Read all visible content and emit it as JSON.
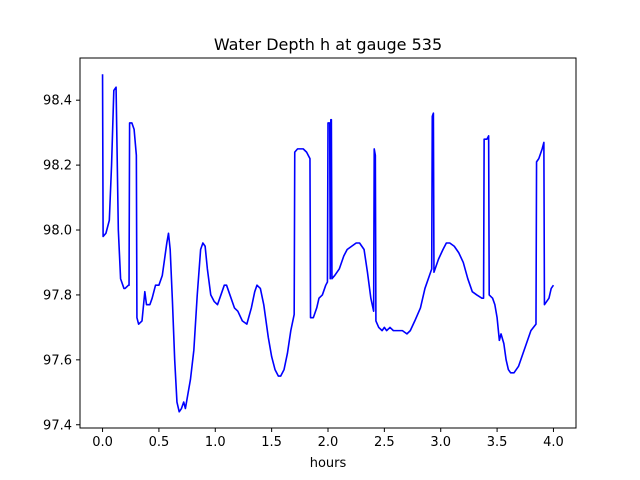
{
  "chart_data": {
    "type": "line",
    "title": "Water Depth h at gauge 535",
    "xlabel": "hours",
    "ylabel": "",
    "xlim": [
      -0.2,
      4.2
    ],
    "ylim": [
      97.39,
      98.53
    ],
    "xticks": [
      0.0,
      0.5,
      1.0,
      1.5,
      2.0,
      2.5,
      3.0,
      3.5,
      4.0
    ],
    "xtick_labels": [
      "0.0",
      "0.5",
      "1.0",
      "1.5",
      "2.0",
      "2.5",
      "3.0",
      "3.5",
      "4.0"
    ],
    "yticks": [
      97.4,
      97.6,
      97.8,
      98.0,
      98.2,
      98.4
    ],
    "ytick_labels": [
      "97.4",
      "97.6",
      "97.8",
      "98.0",
      "98.2",
      "98.4"
    ],
    "grid": false,
    "series": [
      {
        "color": "#0000ff",
        "points": [
          [
            0.0,
            98.48
          ],
          [
            0.005,
            97.98
          ],
          [
            0.03,
            97.99
          ],
          [
            0.06,
            98.03
          ],
          [
            0.08,
            98.2
          ],
          [
            0.1,
            98.43
          ],
          [
            0.12,
            98.44
          ],
          [
            0.14,
            98.0
          ],
          [
            0.16,
            97.85
          ],
          [
            0.19,
            97.82
          ],
          [
            0.2,
            97.82
          ],
          [
            0.23,
            97.83
          ],
          [
            0.235,
            97.83
          ],
          [
            0.24,
            98.33
          ],
          [
            0.26,
            98.33
          ],
          [
            0.28,
            98.31
          ],
          [
            0.3,
            98.23
          ],
          [
            0.305,
            97.73
          ],
          [
            0.32,
            97.71
          ],
          [
            0.35,
            97.72
          ],
          [
            0.375,
            97.81
          ],
          [
            0.39,
            97.77
          ],
          [
            0.42,
            97.77
          ],
          [
            0.44,
            97.79
          ],
          [
            0.47,
            97.83
          ],
          [
            0.5,
            97.83
          ],
          [
            0.53,
            97.86
          ],
          [
            0.55,
            97.91
          ],
          [
            0.57,
            97.96
          ],
          [
            0.585,
            97.99
          ],
          [
            0.6,
            97.94
          ],
          [
            0.62,
            97.78
          ],
          [
            0.64,
            97.6
          ],
          [
            0.66,
            97.47
          ],
          [
            0.68,
            97.44
          ],
          [
            0.7,
            97.45
          ],
          [
            0.72,
            97.47
          ],
          [
            0.735,
            97.45
          ],
          [
            0.75,
            97.48
          ],
          [
            0.78,
            97.54
          ],
          [
            0.81,
            97.63
          ],
          [
            0.84,
            97.8
          ],
          [
            0.87,
            97.94
          ],
          [
            0.89,
            97.96
          ],
          [
            0.91,
            97.95
          ],
          [
            0.93,
            97.88
          ],
          [
            0.96,
            97.8
          ],
          [
            0.99,
            97.78
          ],
          [
            1.02,
            97.77
          ],
          [
            1.05,
            97.8
          ],
          [
            1.08,
            97.83
          ],
          [
            1.1,
            97.83
          ],
          [
            1.13,
            97.8
          ],
          [
            1.17,
            97.76
          ],
          [
            1.2,
            97.75
          ],
          [
            1.24,
            97.72
          ],
          [
            1.28,
            97.71
          ],
          [
            1.32,
            97.76
          ],
          [
            1.35,
            97.81
          ],
          [
            1.37,
            97.83
          ],
          [
            1.4,
            97.82
          ],
          [
            1.43,
            97.77
          ],
          [
            1.47,
            97.67
          ],
          [
            1.5,
            97.61
          ],
          [
            1.53,
            97.57
          ],
          [
            1.56,
            97.55
          ],
          [
            1.58,
            97.55
          ],
          [
            1.61,
            97.57
          ],
          [
            1.64,
            97.62
          ],
          [
            1.67,
            97.69
          ],
          [
            1.7,
            97.74
          ],
          [
            1.705,
            98.24
          ],
          [
            1.73,
            98.25
          ],
          [
            1.78,
            98.25
          ],
          [
            1.81,
            98.24
          ],
          [
            1.84,
            98.22
          ],
          [
            1.845,
            97.73
          ],
          [
            1.87,
            97.73
          ],
          [
            1.9,
            97.76
          ],
          [
            1.92,
            97.79
          ],
          [
            1.95,
            97.8
          ],
          [
            1.98,
            97.83
          ],
          [
            1.995,
            97.84
          ],
          [
            2.0,
            98.33
          ],
          [
            2.015,
            98.33
          ],
          [
            2.02,
            97.85
          ],
          [
            2.025,
            98.34
          ],
          [
            2.03,
            98.34
          ],
          [
            2.035,
            97.85
          ],
          [
            2.06,
            97.86
          ],
          [
            2.1,
            97.88
          ],
          [
            2.14,
            97.92
          ],
          [
            2.17,
            97.94
          ],
          [
            2.21,
            97.95
          ],
          [
            2.25,
            97.96
          ],
          [
            2.28,
            97.96
          ],
          [
            2.32,
            97.94
          ],
          [
            2.35,
            97.87
          ],
          [
            2.38,
            97.79
          ],
          [
            2.405,
            97.75
          ],
          [
            2.41,
            98.25
          ],
          [
            2.42,
            98.23
          ],
          [
            2.425,
            97.72
          ],
          [
            2.45,
            97.7
          ],
          [
            2.48,
            97.69
          ],
          [
            2.5,
            97.7
          ],
          [
            2.52,
            97.69
          ],
          [
            2.55,
            97.7
          ],
          [
            2.58,
            97.69
          ],
          [
            2.6,
            97.69
          ],
          [
            2.63,
            97.69
          ],
          [
            2.66,
            97.69
          ],
          [
            2.7,
            97.68
          ],
          [
            2.73,
            97.69
          ],
          [
            2.77,
            97.72
          ],
          [
            2.82,
            97.76
          ],
          [
            2.86,
            97.82
          ],
          [
            2.9,
            97.86
          ],
          [
            2.92,
            97.88
          ],
          [
            2.925,
            98.35
          ],
          [
            2.935,
            98.36
          ],
          [
            2.94,
            97.87
          ],
          [
            2.98,
            97.91
          ],
          [
            3.02,
            97.94
          ],
          [
            3.05,
            97.96
          ],
          [
            3.08,
            97.96
          ],
          [
            3.12,
            97.95
          ],
          [
            3.16,
            97.93
          ],
          [
            3.2,
            97.9
          ],
          [
            3.24,
            97.85
          ],
          [
            3.28,
            97.81
          ],
          [
            3.32,
            97.8
          ],
          [
            3.365,
            97.79
          ],
          [
            3.38,
            97.79
          ],
          [
            3.385,
            98.28
          ],
          [
            3.41,
            98.28
          ],
          [
            3.425,
            98.29
          ],
          [
            3.43,
            97.8
          ],
          [
            3.46,
            97.79
          ],
          [
            3.48,
            97.77
          ],
          [
            3.5,
            97.73
          ],
          [
            3.52,
            97.66
          ],
          [
            3.535,
            97.68
          ],
          [
            3.56,
            97.65
          ],
          [
            3.58,
            97.6
          ],
          [
            3.6,
            97.57
          ],
          [
            3.62,
            97.56
          ],
          [
            3.65,
            97.56
          ],
          [
            3.69,
            97.58
          ],
          [
            3.73,
            97.62
          ],
          [
            3.77,
            97.66
          ],
          [
            3.8,
            97.69
          ],
          [
            3.845,
            97.71
          ],
          [
            3.85,
            98.21
          ],
          [
            3.87,
            98.22
          ],
          [
            3.9,
            98.25
          ],
          [
            3.915,
            98.27
          ],
          [
            3.92,
            97.77
          ],
          [
            3.94,
            97.78
          ],
          [
            3.96,
            97.79
          ],
          [
            3.98,
            97.82
          ],
          [
            4.0,
            97.83
          ]
        ]
      }
    ]
  }
}
